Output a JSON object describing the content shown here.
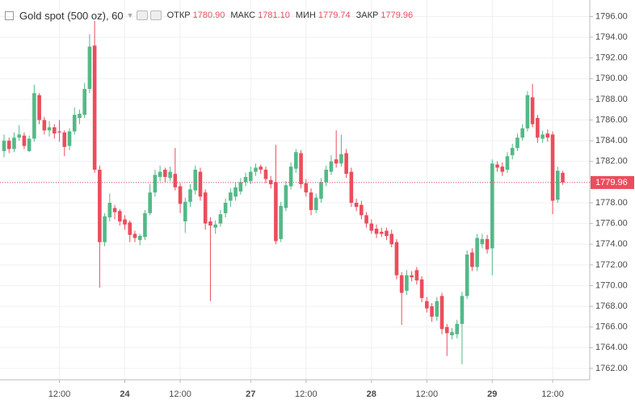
{
  "chart_data": {
    "type": "candlestick",
    "title": "Gold spot (500 oz), 60",
    "ohlc_names": [
      "ОТКР",
      "МАКС",
      "МИН",
      "ЗАКР"
    ],
    "ohlc_labels": [
      "1780.90",
      "1781.10",
      "1779.74",
      "1779.96"
    ],
    "up_color": "#53b987",
    "down_color": "#eb4d5c",
    "grid": true,
    "ylim": [
      1760.9,
      1797.6
    ],
    "yticks": [
      {
        "value": 1762,
        "label": "1762.00"
      },
      {
        "value": 1764,
        "label": "1764.00"
      },
      {
        "value": 1766,
        "label": "1766.00"
      },
      {
        "value": 1768,
        "label": "1768.00"
      },
      {
        "value": 1770,
        "label": "1770.00"
      },
      {
        "value": 1772,
        "label": "1772.00"
      },
      {
        "value": 1774,
        "label": "1774.00"
      },
      {
        "value": 1776,
        "label": "1776.00"
      },
      {
        "value": 1778,
        "label": "1778.00"
      },
      {
        "value": 1780,
        "label": "1780.00"
      },
      {
        "value": 1782,
        "label": "1782.00"
      },
      {
        "value": 1784,
        "label": "1784.00"
      },
      {
        "value": 1786,
        "label": "1786.00"
      },
      {
        "value": 1788,
        "label": "1788.00"
      },
      {
        "value": 1790,
        "label": "1790.00"
      },
      {
        "value": 1792,
        "label": "1792.00"
      },
      {
        "value": 1794,
        "label": "1794.00"
      },
      {
        "value": 1796,
        "label": "1796.00"
      }
    ],
    "categories": [
      null,
      null,
      null,
      null,
      null,
      null,
      null,
      null,
      null,
      null,
      null,
      "12:00",
      null,
      null,
      null,
      null,
      null,
      null,
      null,
      null,
      null,
      null,
      null,
      null,
      "24",
      null,
      null,
      null,
      null,
      null,
      null,
      null,
      null,
      null,
      null,
      "12:00",
      null,
      null,
      null,
      null,
      null,
      null,
      null,
      null,
      null,
      null,
      null,
      null,
      null,
      "27",
      null,
      null,
      null,
      null,
      null,
      null,
      null,
      null,
      null,
      null,
      "12:00",
      null,
      null,
      null,
      null,
      null,
      null,
      null,
      null,
      null,
      null,
      null,
      null,
      "28",
      null,
      null,
      null,
      null,
      null,
      null,
      null,
      null,
      null,
      null,
      "12:00",
      null,
      null,
      null,
      null,
      null,
      null,
      null,
      null,
      null,
      null,
      null,
      null,
      "29",
      null,
      null,
      null,
      null,
      null,
      null,
      null,
      null,
      null,
      null,
      null,
      "12:00",
      null,
      null
    ],
    "open": [
      1783.0,
      1784.0,
      1783.2,
      1784.3,
      1784.5,
      1783.0,
      1784.2,
      1788.4,
      1786.0,
      1785.0,
      1785.3,
      1784.9,
      1784.8,
      1783.5,
      1784.9,
      1786.2,
      1786.5,
      1789.0,
      1793.2,
      1781.2,
      1774.2,
      1776.6,
      1777.5,
      1777.2,
      1776.4,
      1776.1,
      1775.0,
      1774.4,
      1774.7,
      1777.0,
      1779.0,
      1780.5,
      1781.2,
      1780.4,
      1780.8,
      1779.6,
      1776.2,
      1778.1,
      1779.2,
      1781.0,
      1779.0,
      1776.2,
      1775.6,
      1776.0,
      1777.0,
      1778.2,
      1778.6,
      1779.1,
      1780.0,
      1780.1,
      1781.0,
      1781.5,
      1781.2,
      1780.2,
      1780.0,
      1774.5,
      1777.5,
      1779.6,
      1781.3,
      1782.8,
      1779.9,
      1779.0,
      1777.3,
      1778.4,
      1780.0,
      1781.0,
      1782.2,
      1781.8,
      1782.8,
      1781.0,
      1778.0,
      1777.8,
      1776.8,
      1776.0,
      1775.5,
      1775.2,
      1775.3,
      1775.0,
      1774.2,
      1771.0,
      1769.5,
      1771.0,
      1771.5,
      1770.6,
      1768.5,
      1768.0,
      1767.0,
      1769.0,
      1766.0,
      1765.2,
      1765.3,
      1766.3,
      1769.0,
      1773.2,
      1771.8,
      1774.0,
      1774.5,
      1773.6,
      1781.7,
      1781.5,
      1781.2,
      1782.6,
      1783.3,
      1784.3,
      1785.2,
      1788.2,
      1786.2,
      1784.2,
      1784.7,
      1784.6,
      1778.3,
      1780.9
    ],
    "high": [
      1784.6,
      1784.3,
      1784.8,
      1785.5,
      1784.8,
      1784.5,
      1789.4,
      1788.6,
      1786.3,
      1785.9,
      1785.6,
      1786.0,
      1785.0,
      1785.2,
      1787.2,
      1787.0,
      1789.6,
      1794.3,
      1795.6,
      1781.6,
      1777.0,
      1778.9,
      1777.8,
      1777.4,
      1776.8,
      1776.3,
      1775.3,
      1775.0,
      1777.3,
      1779.8,
      1781.2,
      1781.6,
      1781.4,
      1781.5,
      1783.3,
      1779.9,
      1778.5,
      1779.8,
      1781.6,
      1781.4,
      1779.3,
      1776.6,
      1776.3,
      1777.3,
      1778.4,
      1779.4,
      1780.0,
      1780.4,
      1780.9,
      1781.5,
      1781.8,
      1781.7,
      1781.5,
      1780.6,
      1783.6,
      1778.1,
      1780.1,
      1781.9,
      1783.2,
      1783.1,
      1780.3,
      1779.4,
      1778.9,
      1780.4,
      1781.6,
      1782.6,
      1785.0,
      1784.6,
      1783.2,
      1781.4,
      1778.4,
      1778.2,
      1777.1,
      1776.4,
      1775.9,
      1775.6,
      1775.6,
      1775.4,
      1774.5,
      1771.3,
      1771.5,
      1771.4,
      1771.8,
      1770.9,
      1768.9,
      1768.3,
      1768.9,
      1769.3,
      1766.3,
      1765.9,
      1766.7,
      1769.4,
      1773.4,
      1773.6,
      1775.0,
      1775.0,
      1774.9,
      1782.2,
      1782.0,
      1781.9,
      1782.9,
      1783.7,
      1784.7,
      1785.6,
      1788.8,
      1789.5,
      1786.5,
      1785.0,
      1785.1,
      1784.9,
      1781.5,
      1781.1
    ],
    "low": [
      1782.4,
      1782.8,
      1782.9,
      1784.0,
      1783.2,
      1782.9,
      1783.9,
      1785.6,
      1784.6,
      1784.4,
      1784.2,
      1783.9,
      1782.5,
      1783.1,
      1784.6,
      1785.6,
      1786.2,
      1788.6,
      1780.9,
      1769.8,
      1773.8,
      1776.2,
      1776.4,
      1775.8,
      1775.4,
      1774.2,
      1774.2,
      1773.9,
      1774.4,
      1776.8,
      1778.6,
      1780.1,
      1780.0,
      1780.1,
      1779.2,
      1777.0,
      1775.1,
      1777.6,
      1778.8,
      1778.2,
      1775.4,
      1768.5,
      1775.0,
      1775.7,
      1776.6,
      1777.6,
      1778.2,
      1778.8,
      1779.6,
      1779.8,
      1780.6,
      1780.8,
      1779.9,
      1779.4,
      1774.0,
      1774.2,
      1777.2,
      1779.3,
      1780.9,
      1779.4,
      1778.6,
      1776.8,
      1777.0,
      1778.0,
      1779.6,
      1780.7,
      1781.4,
      1781.5,
      1780.4,
      1777.6,
      1777.2,
      1776.4,
      1775.6,
      1775.0,
      1774.6,
      1774.7,
      1774.4,
      1773.7,
      1770.6,
      1766.2,
      1769.1,
      1770.4,
      1770.1,
      1768.4,
      1767.4,
      1766.5,
      1766.6,
      1765.3,
      1763.2,
      1764.8,
      1764.9,
      1762.4,
      1768.7,
      1771.4,
      1771.4,
      1773.6,
      1773.1,
      1771.0,
      1781.0,
      1780.6,
      1780.9,
      1782.2,
      1783.0,
      1784.0,
      1784.9,
      1785.3,
      1783.8,
      1783.8,
      1783.9,
      1776.9,
      1778.0,
      1779.74
    ],
    "close": [
      1784.0,
      1783.2,
      1784.3,
      1784.6,
      1783.5,
      1784.2,
      1788.6,
      1786.0,
      1785.0,
      1785.3,
      1784.7,
      1784.8,
      1783.4,
      1784.9,
      1786.5,
      1786.6,
      1789.0,
      1793.1,
      1781.2,
      1774.2,
      1776.7,
      1778.0,
      1777.1,
      1776.2,
      1775.9,
      1774.9,
      1774.6,
      1774.8,
      1777.0,
      1779.0,
      1780.7,
      1781.0,
      1780.5,
      1781.0,
      1779.5,
      1777.9,
      1778.1,
      1779.3,
      1781.2,
      1778.6,
      1776.0,
      1775.8,
      1775.9,
      1776.9,
      1778.0,
      1779.0,
      1779.5,
      1780.0,
      1780.5,
      1781.0,
      1781.4,
      1781.2,
      1780.3,
      1779.8,
      1774.3,
      1777.7,
      1779.7,
      1781.5,
      1782.9,
      1779.8,
      1779.0,
      1777.3,
      1778.5,
      1780.0,
      1781.2,
      1782.0,
      1781.8,
      1782.7,
      1780.8,
      1778.0,
      1777.6,
      1776.8,
      1776.0,
      1775.3,
      1775.0,
      1775.0,
      1774.8,
      1774.0,
      1771.0,
      1769.3,
      1771.0,
      1770.8,
      1770.5,
      1768.8,
      1767.8,
      1767.0,
      1768.5,
      1765.8,
      1765.4,
      1765.5,
      1766.3,
      1769.0,
      1773.0,
      1771.8,
      1774.6,
      1774.5,
      1773.5,
      1781.8,
      1781.4,
      1781.0,
      1782.5,
      1783.3,
      1784.3,
      1785.2,
      1788.4,
      1785.6,
      1784.3,
      1784.6,
      1784.3,
      1778.2,
      1781.1,
      1779.96
    ]
  }
}
